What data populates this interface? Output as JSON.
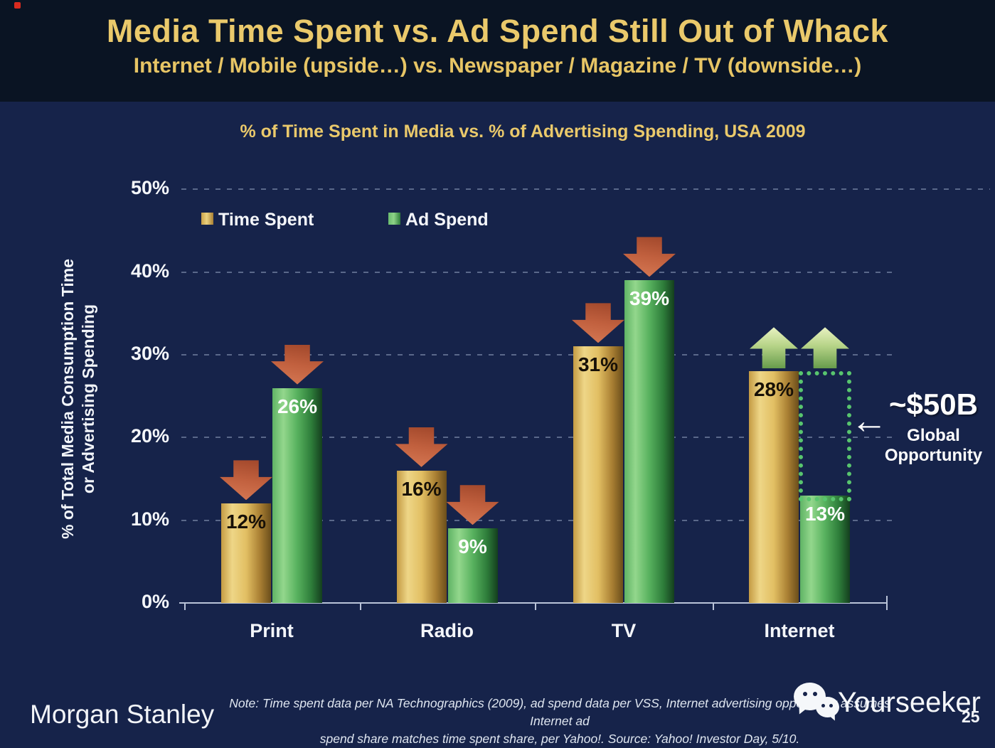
{
  "slide": {
    "title": "Media Time Spent vs. Ad Spend Still Out of Whack",
    "subtitle": "Internet / Mobile (upside…) vs. Newspaper / Magazine / TV (downside…)"
  },
  "chart_data": {
    "type": "bar",
    "title": "% of Time Spent in Media vs. % of Advertising Spending, USA 2009",
    "ylabel_line1": "% of Total Media Consumption Time",
    "ylabel_line2": "or Advertising Spending",
    "categories": [
      "Print",
      "Radio",
      "TV",
      "Internet"
    ],
    "series": [
      {
        "name": "Time Spent",
        "values": [
          12,
          16,
          31,
          28
        ]
      },
      {
        "name": "Ad Spend",
        "values": [
          26,
          9,
          39,
          13
        ]
      }
    ],
    "value_labels": [
      [
        "12%",
        "16%",
        "31%",
        "28%"
      ],
      [
        "26%",
        "9%",
        "39%",
        "13%"
      ]
    ],
    "y_ticks": [
      "0%",
      "10%",
      "20%",
      "30%",
      "40%",
      "50%"
    ],
    "ylim": [
      0,
      50
    ],
    "grid": "dashed horizontal lines every 10%",
    "legend_position": "top-left inside plot",
    "trend_arrows": [
      [
        "down",
        "down"
      ],
      [
        "down",
        "down"
      ],
      [
        "down",
        "down"
      ],
      [
        "up",
        "up"
      ]
    ],
    "annotation": {
      "value": "~$50B",
      "label_line1": "Global",
      "label_line2": "Opportunity",
      "arrow_glyph": "←",
      "gap_category": "Internet",
      "gap_from_pct": 13,
      "gap_to_pct": 28
    }
  },
  "footer": {
    "logo": "Morgan Stanley",
    "note_line1": "Note: Time spent data per NA Technographics (2009), ad spend data per VSS, Internet advertising opportunity assumes Internet ad",
    "note_line2": "spend share matches time spent share, per Yahoo!. Source: Yahoo! Investor Day, 5/10.",
    "page_number": "25",
    "watermark": "Yourseeker"
  },
  "colors": {
    "background": "#16234a",
    "header_background": "#0a1423",
    "title_gold": "#eac96b",
    "bar_gold_light": "#ecd27f",
    "bar_gold_dark": "#6b4e1b",
    "bar_green_light": "#8ed388",
    "bar_green_dark": "#143f1e",
    "down_arrow": "#c1603e",
    "up_arrow": "#b7d488",
    "dotted_box_green": "#58c56e",
    "axis": "#b9c3d8",
    "text_white": "#f5f7fa",
    "value_label_dark": "#171007"
  }
}
